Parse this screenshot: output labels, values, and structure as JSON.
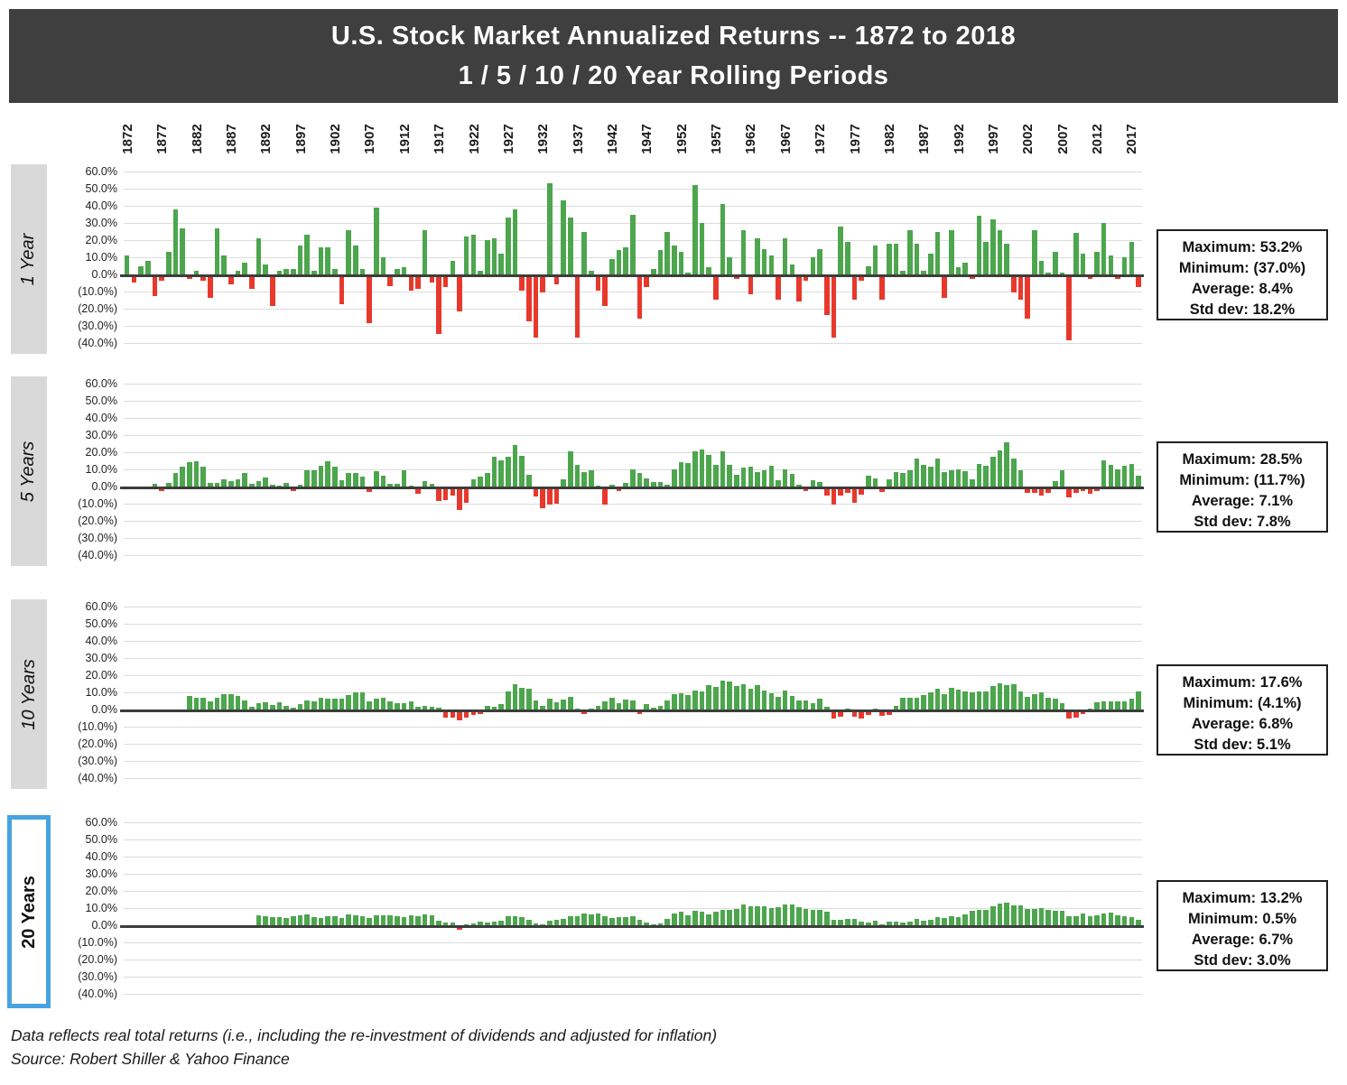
{
  "title": {
    "line1": "U.S. Stock Market Annualized Returns -- 1872 to 2018",
    "line2": "1 / 5 / 10 / 20 Year Rolling Periods"
  },
  "footer": {
    "line1": "Data reflects real total returns (i.e., including the re-investment of dividends and adjusted for inflation)",
    "line2": "Source: Robert Shiller & Yahoo Finance"
  },
  "colors": {
    "positive_bar": "#4da64e",
    "negative_bar": "#e8382c",
    "title_bg": "#3f3f3f",
    "title_text": "#ffffff",
    "panel_label_bg": "#d9d9d9",
    "highlight_border": "#47a3df",
    "gridline": "#dcdcdc",
    "zero_axis": "#3d3d3d",
    "stats_border": "#1f1f1f"
  },
  "x_axis": {
    "tick_years": [
      1872,
      1877,
      1882,
      1887,
      1892,
      1897,
      1902,
      1907,
      1912,
      1917,
      1922,
      1927,
      1932,
      1937,
      1942,
      1947,
      1952,
      1957,
      1962,
      1967,
      1972,
      1977,
      1982,
      1987,
      1992,
      1997,
      2002,
      2007,
      2012,
      2017
    ]
  },
  "y_axis": {
    "tick_labels": [
      "60.0%",
      "50.0%",
      "40.0%",
      "30.0%",
      "20.0%",
      "10.0%",
      "0.0%",
      "(10.0%)",
      "(20.0%)",
      "(30.0%)",
      "(40.0%)"
    ],
    "max": 60,
    "min": -40,
    "step": 10
  },
  "panels": [
    {
      "label": "1 Year",
      "window": 1,
      "first_end_year": 1872,
      "highlighted": false,
      "stats": [
        "Maximum: 53.2%",
        "Minimum: (37.0%)",
        "Average: 8.4%",
        "Std dev: 18.2%"
      ]
    },
    {
      "label": "5 Years",
      "window": 5,
      "first_end_year": 1876,
      "highlighted": false,
      "stats": [
        "Maximum: 28.5%",
        "Minimum: (11.7%)",
        "Average: 7.1%",
        "Std dev: 7.8%"
      ]
    },
    {
      "label": "10 Years",
      "window": 10,
      "first_end_year": 1881,
      "highlighted": false,
      "stats": [
        "Maximum: 17.6%",
        "Minimum: (4.1%)",
        "Average: 6.8%",
        "Std dev: 5.1%"
      ]
    },
    {
      "label": "20 Years",
      "window": 20,
      "first_end_year": 1891,
      "highlighted": true,
      "stats": [
        "Maximum: 13.2%",
        "Minimum: 0.5%",
        "Average: 6.7%",
        "Std dev: 3.0%"
      ]
    }
  ],
  "chart_data": [
    {
      "type": "bar",
      "title": "1 Year rolling real total return (%)",
      "x_start": 1872,
      "x_end": 2018,
      "x_step": 1,
      "ylim": [
        -40,
        60
      ],
      "grid": true,
      "legend": "none",
      "maximum": 53.2,
      "minimum": -37.0,
      "average": 8.4,
      "std_dev": 18.2,
      "values": [
        11,
        -3,
        5,
        8,
        -11,
        -2,
        13,
        38,
        27,
        -1,
        2,
        -2,
        -12,
        27,
        11,
        -4,
        2,
        7,
        -7,
        21,
        6,
        -17,
        2,
        3,
        3,
        17,
        23,
        2,
        16,
        16,
        3,
        -16,
        26,
        17,
        3,
        -27,
        39,
        10,
        -5,
        3,
        4,
        -8,
        -7,
        26,
        -3,
        -33,
        -6,
        8,
        -20,
        22,
        23,
        2,
        20,
        21,
        12,
        33,
        38,
        -8,
        -26,
        -35,
        -9,
        53.2,
        -4,
        43,
        33,
        -35,
        25,
        2,
        -8,
        -17,
        9,
        14,
        16,
        35,
        -24,
        -6,
        3,
        14,
        25,
        17,
        13,
        1,
        52,
        30,
        4,
        -13,
        41,
        10,
        -1,
        26,
        -10,
        21,
        15,
        11,
        -13,
        21,
        6,
        -14,
        -2,
        10,
        15,
        -22,
        -35,
        28,
        19,
        -13,
        -2,
        5,
        17,
        -13,
        18,
        18,
        2,
        26,
        18,
        2,
        12,
        25,
        -12,
        26,
        4,
        7,
        -1,
        34,
        19,
        32,
        26,
        18,
        -9,
        -13,
        -24,
        26,
        8,
        1,
        13,
        1,
        -37,
        24,
        12,
        -1,
        13,
        30,
        11,
        -1,
        10,
        19,
        -6
      ]
    },
    {
      "type": "bar",
      "title": "5 Year rolling annualized real total return (%)",
      "derived_from_series": 0,
      "derivation": "geometric-mean-annualized-rolling",
      "window": 5,
      "x_start": 1876,
      "x_end": 2018,
      "x_step": 1,
      "ylim": [
        -40,
        60
      ],
      "grid": true,
      "maximum": 28.5,
      "minimum": -11.7,
      "average": 7.1,
      "std_dev": 7.8
    },
    {
      "type": "bar",
      "title": "10 Year rolling annualized real total return (%)",
      "derived_from_series": 0,
      "derivation": "geometric-mean-annualized-rolling",
      "window": 10,
      "x_start": 1881,
      "x_end": 2018,
      "x_step": 1,
      "ylim": [
        -40,
        60
      ],
      "grid": true,
      "maximum": 17.6,
      "minimum": -4.1,
      "average": 6.8,
      "std_dev": 5.1
    },
    {
      "type": "bar",
      "title": "20 Year rolling annualized real total return (%)",
      "derived_from_series": 0,
      "derivation": "geometric-mean-annualized-rolling",
      "window": 20,
      "x_start": 1891,
      "x_end": 2018,
      "x_step": 1,
      "ylim": [
        -40,
        60
      ],
      "grid": true,
      "maximum": 13.2,
      "minimum": 0.5,
      "average": 6.7,
      "std_dev": 3.0
    }
  ]
}
